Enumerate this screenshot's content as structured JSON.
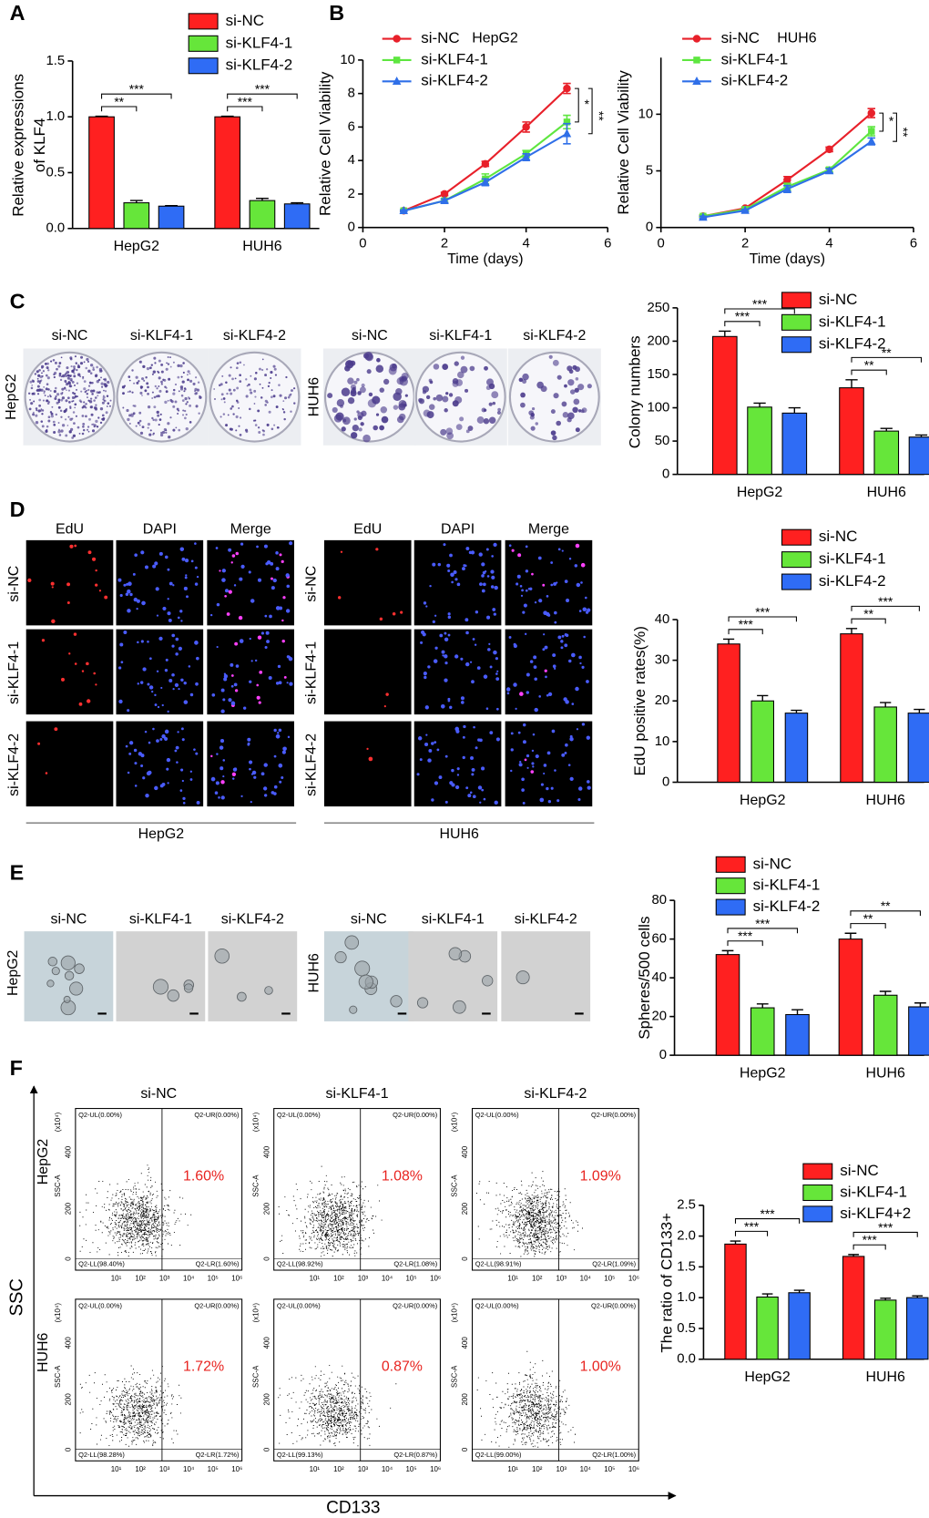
{
  "panels": [
    "A",
    "B",
    "C",
    "D",
    "E",
    "F"
  ],
  "colony": {
    "conditions": [
      "si-NC",
      "si-KLF4-1",
      "si-KLF4-2"
    ],
    "cells": [
      "HepG2",
      "HUH6"
    ]
  },
  "edu": {
    "channels": [
      "EdU",
      "DAPI",
      "Merge"
    ],
    "conditions": [
      "si-NC",
      "si-KLF4-1",
      "si-KLF4-2"
    ],
    "cells": [
      "HepG2",
      "HUH6"
    ]
  },
  "sphere": {
    "conditions": [
      "si-NC",
      "si-KLF4-1",
      "si-KLF4-2"
    ],
    "cells": [
      "HepG2",
      "HUH6"
    ]
  },
  "flow": {
    "conditions": [
      "si-NC",
      "si-KLF4-1",
      "si-KLF4-2"
    ],
    "cells": [
      "HepG2",
      "HUH6"
    ],
    "x_axis_label": "CD133",
    "y_axis_label": "SSC",
    "plot_y_label": "SSC-A",
    "plot_y_unit": "(x10⁴)",
    "plot_yticks": [
      "400",
      "200",
      "0"
    ],
    "plot_xticks": [
      "10¹",
      "10²",
      "10³",
      "10⁴",
      "10⁵",
      "10⁶"
    ],
    "plots": [
      [
        {
          "ul": "Q2-UL(0.00%)",
          "ur": "Q2-UR(0.00%)",
          "ll": "Q2-LL(98.40%)",
          "lr": "Q2-LR(1.60%)",
          "percent": "1.60%"
        },
        {
          "ul": "Q2-UL(0.00%)",
          "ur": "Q2-UR(0.00%)",
          "ll": "Q2-LL(98.92%)",
          "lr": "Q2-LR(1.08%)",
          "percent": "1.08%"
        },
        {
          "ul": "Q2-UL(0.00%)",
          "ur": "Q2-UR(0.00%)",
          "ll": "Q2-LL(98.91%)",
          "lr": "Q2-LR(1.09%)",
          "percent": "1.09%"
        }
      ],
      [
        {
          "ul": "Q2-UL(0.00%)",
          "ur": "Q2-UR(0.00%)",
          "ll": "Q2-LL(98.28%)",
          "lr": "Q2-LR(1.72%)",
          "percent": "1.72%"
        },
        {
          "ul": "Q2-UL(0.00%)",
          "ur": "Q2-UR(0.00%)",
          "ll": "Q2-LL(99.13%)",
          "lr": "Q2-LR(0.87%)",
          "percent": "0.87%"
        },
        {
          "ul": "Q2-UL(0.00%)",
          "ur": "Q2-UR(0.00%)",
          "ll": "Q2-LL(99.00%)",
          "lr": "Q2-LR(1.00%)",
          "percent": "1.00%"
        }
      ]
    ]
  },
  "chart_data": [
    {
      "type": "bar",
      "ylabel": [
        "Relative expressions",
        "of KLF4"
      ],
      "categories": [
        "HepG2",
        "HUH6"
      ],
      "series": [
        {
          "name": "si-NC",
          "color": "#ff2020",
          "values": [
            1.0,
            1.0
          ],
          "errors": [
            0.005,
            0.005
          ]
        },
        {
          "name": "si-KLF4-1",
          "color": "#66e63a",
          "values": [
            0.23,
            0.25
          ],
          "errors": [
            0.02,
            0.02
          ]
        },
        {
          "name": "si-KLF4-2",
          "color": "#2f6cf5",
          "values": [
            0.2,
            0.22
          ],
          "errors": [
            0.005,
            0.01
          ]
        }
      ],
      "significance": [
        [
          "**",
          "***"
        ],
        [
          "***",
          "***"
        ]
      ],
      "ylim": [
        0,
        1.5
      ],
      "yticks": [
        {
          "value": 0,
          "label": "0.0"
        },
        0.5,
        {
          "value": 1,
          "label": "1.0"
        },
        1.5
      ]
    },
    {
      "type": "line",
      "title": "HepG2",
      "xlabel": "Time (days)",
      "ylabel": "Relative Cell Viability",
      "x": [
        1,
        2,
        3,
        4,
        5
      ],
      "series": [
        {
          "name": "si-NC",
          "color": "#e8202a",
          "values": [
            1.0,
            2.0,
            3.8,
            6.0,
            8.3
          ],
          "errors": [
            0.05,
            0.1,
            0.15,
            0.3,
            0.3
          ]
        },
        {
          "name": "si-KLF4-1",
          "color": "#5ee640",
          "values": [
            1.0,
            1.6,
            2.9,
            4.4,
            6.3
          ],
          "errors": [
            0.05,
            0.1,
            0.3,
            0.2,
            0.4
          ]
        },
        {
          "name": "si-KLF4-2",
          "color": "#2f6fe8",
          "values": [
            1.0,
            1.6,
            2.7,
            4.2,
            5.6
          ],
          "errors": [
            0.05,
            0.1,
            0.2,
            0.2,
            0.6
          ]
        }
      ],
      "significance": [
        "*",
        "**"
      ],
      "xlim": [
        0,
        6
      ],
      "xticks": [
        0,
        2,
        4,
        6
      ],
      "ylim": [
        0,
        10
      ],
      "yticks": [
        0,
        2,
        4,
        6,
        8,
        10
      ]
    },
    {
      "type": "line",
      "title": "HUH6",
      "xlabel": "Time (days)",
      "ylabel": "Relative Cell Viability",
      "x": [
        1,
        2,
        3,
        4,
        5
      ],
      "series": [
        {
          "name": "si-NC",
          "color": "#e8202a",
          "values": [
            1.0,
            1.7,
            4.2,
            6.9,
            10.1
          ],
          "errors": [
            0.1,
            0.1,
            0.3,
            0.2,
            0.4
          ]
        },
        {
          "name": "si-KLF4-1",
          "color": "#5ee640",
          "values": [
            1.0,
            1.6,
            3.6,
            5.1,
            8.5
          ],
          "errors": [
            0.1,
            0.1,
            0.3,
            0.2,
            0.4
          ]
        },
        {
          "name": "si-KLF4-2",
          "color": "#2f6fe8",
          "values": [
            0.9,
            1.5,
            3.4,
            5.0,
            7.6
          ],
          "errors": [
            0.1,
            0.1,
            0.3,
            0.2,
            0.3
          ]
        }
      ],
      "significance": [
        "*",
        "**"
      ],
      "xlim": [
        0,
        6
      ],
      "xticks": [
        0,
        2,
        4,
        6
      ],
      "ylim": [
        0,
        15
      ],
      "yticks": [
        0,
        5,
        10
      ]
    },
    {
      "type": "bar",
      "ylabel": "Colony numbers",
      "categories": [
        "HepG2",
        "HUH6"
      ],
      "series": [
        {
          "name": "si-NC",
          "color": "#ff2020",
          "values": [
            207,
            130
          ],
          "errors": [
            8,
            12
          ]
        },
        {
          "name": "si-KLF4-1",
          "color": "#66e63a",
          "values": [
            101,
            65
          ],
          "errors": [
            6,
            4
          ]
        },
        {
          "name": "si-KLF4-2",
          "color": "#2f6cf5",
          "values": [
            92,
            56
          ],
          "errors": [
            8,
            3
          ]
        }
      ],
      "significance": [
        [
          "***",
          "***"
        ],
        [
          "**",
          "**"
        ]
      ],
      "ylim": [
        0,
        250
      ],
      "yticks": [
        0,
        50,
        100,
        150,
        200,
        250
      ]
    },
    {
      "type": "bar",
      "ylabel": "EdU positive rates(%)",
      "categories": [
        "HepG2",
        "HUH6"
      ],
      "series": [
        {
          "name": "si-NC",
          "color": "#ff2020",
          "values": [
            34,
            36.5
          ],
          "errors": [
            1.2,
            1.3
          ]
        },
        {
          "name": "si-KLF4-1",
          "color": "#66e63a",
          "values": [
            20,
            18.5
          ],
          "errors": [
            1.3,
            1.1
          ]
        },
        {
          "name": "si-KLF4-2",
          "color": "#2f6cf5",
          "values": [
            17,
            17
          ],
          "errors": [
            0.7,
            0.9
          ]
        }
      ],
      "significance": [
        [
          "***",
          "***"
        ],
        [
          "**",
          "***"
        ]
      ],
      "ylim": [
        0,
        40
      ],
      "yticks": [
        0,
        10,
        20,
        30,
        40
      ]
    },
    {
      "type": "bar",
      "ylabel": "Spheres/500 cells",
      "categories": [
        "HepG2",
        "HUH6"
      ],
      "series": [
        {
          "name": "si-NC",
          "color": "#ff2020",
          "values": [
            52,
            60
          ],
          "errors": [
            2,
            3
          ]
        },
        {
          "name": "si-KLF4-1",
          "color": "#66e63a",
          "values": [
            24.5,
            31
          ],
          "errors": [
            2,
            2
          ]
        },
        {
          "name": "si-KLF4-2",
          "color": "#2f6cf5",
          "values": [
            21,
            25
          ],
          "errors": [
            2.5,
            2
          ]
        }
      ],
      "significance": [
        [
          "***",
          "***"
        ],
        [
          "**",
          "**"
        ]
      ],
      "ylim": [
        0,
        80
      ],
      "yticks": [
        0,
        20,
        40,
        60,
        80
      ]
    },
    {
      "type": "bar",
      "ylabel": "The ratio of CD133+",
      "categories": [
        "HepG2",
        "HUH6"
      ],
      "series": [
        {
          "name": "si-NC",
          "color": "#ff2020",
          "values": [
            1.87,
            1.67
          ],
          "errors": [
            0.05,
            0.03
          ]
        },
        {
          "name": "si-KLF4-1",
          "color": "#66e63a",
          "values": [
            1.01,
            0.96
          ],
          "errors": [
            0.05,
            0.03
          ]
        },
        {
          "name": "si-KLF4+2",
          "color": "#2f6cf5",
          "values": [
            1.08,
            1.0
          ],
          "errors": [
            0.04,
            0.03
          ]
        }
      ],
      "significance": [
        [
          "***",
          "***"
        ],
        [
          "***",
          "***"
        ]
      ],
      "ylim": [
        0,
        2.5
      ],
      "yticks": [
        {
          "value": 0,
          "label": "0.0"
        },
        0.5,
        {
          "value": 1,
          "label": "1.0"
        },
        1.5,
        {
          "value": 2,
          "label": "2.0"
        },
        2.5
      ]
    }
  ]
}
